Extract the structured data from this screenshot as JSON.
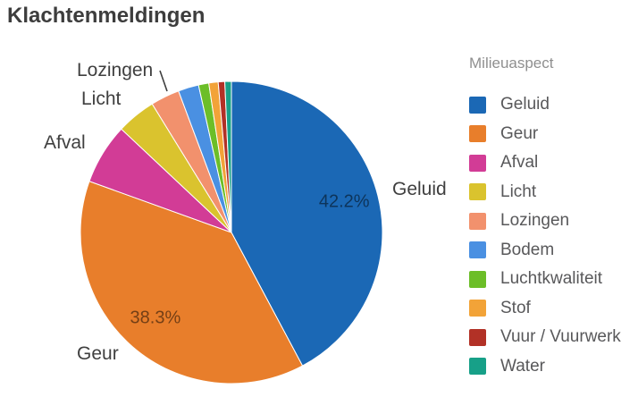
{
  "title": "Klachtenmeldingen",
  "chart_data": {
    "type": "pie",
    "title": "Klachtenmeldingen",
    "legend_title": "Milieuaspect",
    "legend_position": "right",
    "start_angle_deg": 0,
    "direction": "clockwise",
    "slices": [
      {
        "label": "Geluid",
        "value": 42.2,
        "color": "#1B68B5",
        "pct_label": "42.2%",
        "callout": true
      },
      {
        "label": "Geur",
        "value": 38.3,
        "color": "#E87E2B",
        "pct_label": "38.3%",
        "callout": true
      },
      {
        "label": "Afval",
        "value": 6.5,
        "color": "#D23C96",
        "callout": true
      },
      {
        "label": "Licht",
        "value": 4.2,
        "color": "#DAC32E",
        "callout": true
      },
      {
        "label": "Lozingen",
        "value": 3.1,
        "color": "#F2916D",
        "callout": true
      },
      {
        "label": "Bodem",
        "value": 2.2,
        "color": "#4A90E2"
      },
      {
        "label": "Luchtkwaliteit",
        "value": 1.1,
        "color": "#6CBE28"
      },
      {
        "label": "Stof",
        "value": 1.0,
        "color": "#F2A338"
      },
      {
        "label": "Vuur / Vuurwerk",
        "value": 0.7,
        "color": "#B23126"
      },
      {
        "label": "Water",
        "value": 0.7,
        "color": "#17A088"
      }
    ]
  }
}
